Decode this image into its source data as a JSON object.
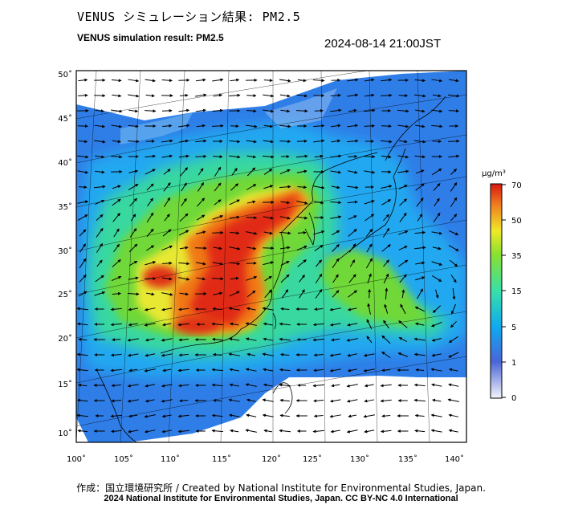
{
  "title_ja": "VENUS シミュレーション結果: PM2.5",
  "title_en": "VENUS simulation result: PM2.5",
  "datetime": "2024-08-14 21:00JST",
  "map": {
    "lat_labels": [
      "50˚",
      "45˚",
      "40˚",
      "35˚",
      "30˚",
      "25˚",
      "20˚",
      "15˚",
      "10˚"
    ],
    "lon_labels": [
      "100˚",
      "105˚",
      "110˚",
      "115˚",
      "120˚",
      "125˚",
      "130˚",
      "135˚",
      "140˚"
    ]
  },
  "colorbar": {
    "unit": "µg/m³",
    "labels": [
      "70",
      "50",
      "35",
      "15",
      "5",
      "1",
      "0"
    ],
    "colors": [
      "#f2f2f8",
      "#4060d0",
      "#10a0f0",
      "#30d8b8",
      "#40d040",
      "#f0f030",
      "#f07018",
      "#d81810"
    ]
  },
  "credit_line1": "作成：国立環境研究所 / Created by National Institute for Environmental Studies, Japan.",
  "credit_line2": "2024 National Institute for Environmental Studies, Japan. CC BY-NC 4.0 International"
}
